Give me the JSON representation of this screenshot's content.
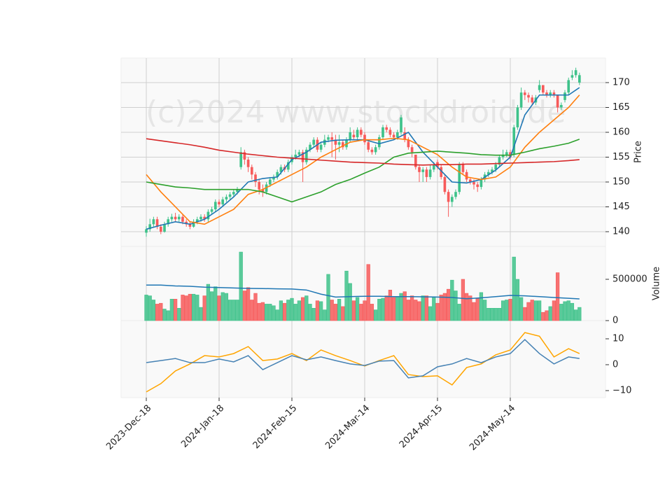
{
  "chart_data": {
    "type": "candlestick",
    "annotation": "(c)2024 www.stockdroid.de",
    "xlim": [
      -6.92,
      126.15
    ],
    "xticks": [
      {
        "value": 0,
        "label": "2023-Dec-18"
      },
      {
        "value": 20,
        "label": "2024-Jan-18"
      },
      {
        "value": 40,
        "label": "2024-Feb-15"
      },
      {
        "value": 60,
        "label": "2024-Mar-14"
      },
      {
        "value": 80,
        "label": "2024-Apr-15"
      },
      {
        "value": 100,
        "label": "2024-May-14"
      }
    ],
    "grid": true,
    "up_color": "#3ec28a",
    "down_color": "#f75a5a",
    "ylabel": "Price",
    "ylim": [
      137.04,
      174.93
    ],
    "yticks": [
      140,
      145,
      150,
      155,
      160,
      165,
      170
    ],
    "open": [
      139.8,
      140.5,
      141.5,
      142.5,
      141,
      140,
      141.5,
      142.5,
      143,
      142.5,
      143,
      142,
      141.5,
      141,
      142,
      142.5,
      143,
      142.5,
      144,
      144.5,
      146,
      145.5,
      146.5,
      147,
      147.5,
      148,
      153,
      156,
      154.5,
      153,
      151.5,
      150,
      148.5,
      148,
      149.5,
      150.5,
      151,
      152,
      153,
      152.5,
      154,
      155,
      155.5,
      156,
      154,
      156.5,
      157.5,
      158.5,
      156.5,
      157.5,
      158.5,
      159,
      158.5,
      157.5,
      158,
      157,
      158.5,
      159.5,
      159,
      160.5,
      159.5,
      158,
      156.5,
      156,
      157,
      159,
      161,
      160.5,
      159.5,
      159,
      160,
      160,
      158.5,
      157,
      155.5,
      153,
      152,
      152.5,
      151,
      152.5,
      154,
      153,
      151,
      148,
      146,
      147,
      148,
      153.5,
      152,
      150.5,
      150,
      149.5,
      149,
      150.5,
      151.5,
      152,
      152.5,
      153.5,
      155,
      155.5,
      156,
      155.5,
      161,
      165,
      168,
      167.5,
      167,
      166,
      168.5,
      169.5,
      168,
      167.5,
      168,
      167.5,
      165,
      166.5,
      168,
      171,
      171.5,
      170
    ],
    "high": [
      141.1,
      142.6,
      143,
      143,
      141.5,
      142,
      143,
      143.6,
      143.8,
      143.5,
      143.5,
      142.5,
      142,
      142.5,
      143,
      143.5,
      143.5,
      144.5,
      145,
      146.5,
      146.5,
      147,
      147.5,
      148,
      148.5,
      149,
      157,
      156.5,
      155,
      153.5,
      152,
      150.5,
      149.5,
      150,
      151,
      151.5,
      152.5,
      153.5,
      153.5,
      154.5,
      155.5,
      156.5,
      156.5,
      156.5,
      157,
      158,
      159,
      159,
      158,
      159.5,
      159.5,
      160,
      159.5,
      159.5,
      158.5,
      159,
      161,
      160.5,
      161,
      161,
      160,
      158.5,
      157,
      157.5,
      159.5,
      161.5,
      161.5,
      161,
      160,
      160.5,
      163.5,
      161,
      159,
      157.5,
      155.5,
      153.5,
      153,
      153,
      153.5,
      154,
      154.5,
      153.5,
      151.5,
      148.5,
      147.5,
      148.5,
      154,
      154,
      152.5,
      151,
      150.5,
      150,
      151,
      152,
      152.5,
      153,
      154,
      155.5,
      156.5,
      156.5,
      156.5,
      161.5,
      165.5,
      169,
      168.5,
      168,
      167.5,
      167.5,
      170.5,
      169.5,
      168.5,
      168.5,
      168.5,
      167.5,
      166,
      168.5,
      171,
      172.5,
      173,
      172
    ],
    "low": [
      139,
      140,
      141,
      140.5,
      139.5,
      139.8,
      141,
      142,
      142,
      142,
      141.5,
      141,
      140.5,
      140.8,
      141.5,
      142,
      142,
      142,
      143.5,
      144,
      145,
      145,
      146,
      146.5,
      147,
      147.5,
      152.5,
      153.5,
      152,
      150.5,
      149,
      147.5,
      147,
      147.5,
      149,
      150,
      150.5,
      151.5,
      152,
      152,
      153.5,
      154.5,
      155,
      150,
      153.5,
      156,
      157,
      156,
      156,
      157,
      158,
      155,
      154.5,
      156,
      156.5,
      156.5,
      158,
      158.5,
      158.5,
      159,
      157.5,
      156,
      155.5,
      155.5,
      156.5,
      158.5,
      160,
      159,
      158.5,
      158.5,
      159.5,
      158,
      156.5,
      155,
      152.5,
      150,
      150,
      150,
      150.5,
      152,
      152.5,
      150.5,
      147.5,
      143,
      145,
      146.5,
      147.5,
      151.5,
      150,
      149.5,
      148.5,
      148,
      148.5,
      150,
      151,
      151.5,
      152,
      153,
      154.5,
      155,
      154.5,
      155,
      160.5,
      164.5,
      166.5,
      166,
      165.5,
      165.5,
      168,
      167.5,
      167,
      167,
      167,
      164,
      164.5,
      166,
      167.5,
      170.5,
      171,
      169.5
    ],
    "close": [
      140.5,
      141.5,
      142.5,
      141,
      140,
      141.5,
      142.5,
      143,
      142.5,
      143,
      142,
      141.5,
      141,
      142,
      142.5,
      143,
      142.5,
      144,
      144.5,
      146,
      145.5,
      146.5,
      147,
      147.5,
      148,
      148.5,
      156,
      154.5,
      153,
      151.5,
      150,
      148.5,
      148,
      149.5,
      150.5,
      151,
      152,
      153,
      152.5,
      154,
      155,
      155.5,
      156,
      154,
      156.5,
      157.5,
      158.5,
      156.5,
      157.5,
      158.5,
      159,
      158.5,
      157.5,
      158,
      157,
      158.5,
      160,
      159,
      160.5,
      159.5,
      158,
      156.5,
      156,
      157,
      159,
      161,
      160.5,
      159.5,
      159,
      160,
      163,
      158.5,
      157,
      156,
      153,
      152,
      152.5,
      151,
      152.5,
      153.5,
      153,
      151,
      148,
      146,
      147,
      148,
      153.5,
      152,
      150.5,
      150,
      149.5,
      149,
      150.5,
      151.5,
      152,
      152.5,
      153.5,
      155,
      155.5,
      156,
      155,
      161,
      165,
      168,
      167.5,
      167,
      166,
      167,
      169.5,
      168,
      167.5,
      168,
      167.5,
      165,
      165.5,
      168,
      170.5,
      171.5,
      172.5,
      171.5
    ],
    "series": [
      {
        "color": "#1f77b4",
        "x": [
          0,
          4,
          8,
          12,
          16,
          20,
          24,
          28,
          32,
          36,
          40,
          44,
          48,
          52,
          56,
          60,
          64,
          68,
          72,
          76,
          80,
          84,
          88,
          92,
          96,
          100,
          104,
          108,
          112,
          116,
          119
        ],
        "values": [
          140.5,
          141.3,
          142,
          141.5,
          142.5,
          144.5,
          147,
          150,
          150.7,
          151,
          154.5,
          156,
          158,
          158.4,
          158.5,
          158.5,
          157.7,
          158.5,
          160,
          156,
          153,
          150,
          149.8,
          150.5,
          152.4,
          155,
          163.5,
          167.5,
          167.5,
          167.5,
          169
        ]
      },
      {
        "color": "#ff7f0e",
        "x": [
          0,
          4,
          8,
          12,
          16,
          20,
          24,
          28,
          32,
          36,
          40,
          44,
          48,
          52,
          56,
          60,
          64,
          68,
          72,
          76,
          80,
          84,
          88,
          92,
          96,
          100,
          104,
          108,
          112,
          116,
          119
        ],
        "values": [
          151.5,
          148,
          145,
          142,
          141.5,
          143,
          144.5,
          147.5,
          148.5,
          150,
          151.5,
          153,
          155,
          156.5,
          158,
          158.5,
          158.5,
          158.8,
          158.5,
          157,
          155.5,
          153,
          151,
          150.5,
          151,
          153,
          157,
          160,
          162.5,
          165,
          167.5
        ]
      },
      {
        "color": "#2ca02c",
        "x": [
          0,
          4,
          8,
          12,
          16,
          20,
          24,
          28,
          32,
          36,
          40,
          44,
          48,
          52,
          56,
          60,
          64,
          68,
          72,
          76,
          80,
          84,
          88,
          92,
          96,
          100,
          104,
          108,
          112,
          116,
          119
        ],
        "values": [
          150,
          149.5,
          149,
          148.8,
          148.5,
          148.5,
          148.5,
          148.5,
          148,
          147,
          146,
          147,
          148,
          149.5,
          150.5,
          151.8,
          153,
          155,
          155.8,
          156,
          156.2,
          156,
          155.8,
          155.5,
          155.4,
          155.4,
          156,
          156.7,
          157.2,
          157.8,
          158.6
        ]
      },
      {
        "color": "#d62728",
        "x": [
          0,
          4,
          8,
          12,
          16,
          20,
          24,
          28,
          32,
          36,
          40,
          44,
          48,
          52,
          56,
          60,
          64,
          68,
          72,
          76,
          80,
          84,
          88,
          92,
          96,
          100,
          104,
          108,
          112,
          116,
          119
        ],
        "values": [
          158.7,
          158.3,
          157.9,
          157.5,
          157,
          156.4,
          156,
          155.6,
          155.3,
          155,
          154.8,
          154.6,
          154.4,
          154.2,
          154,
          153.9,
          153.8,
          153.6,
          153.5,
          153.4,
          153.5,
          153.5,
          153.6,
          153.6,
          153.7,
          153.8,
          153.9,
          154,
          154.1,
          154.3,
          154.5
        ]
      }
    ],
    "volume": {
      "ylabel": "Volume",
      "ylim": [
        0,
        898300
      ],
      "yticks": [
        0,
        500000
      ],
      "values": [
        310000,
        300000,
        250000,
        200000,
        210000,
        140000,
        120000,
        260000,
        260000,
        150000,
        310000,
        300000,
        320000,
        320000,
        310000,
        160000,
        300000,
        440000,
        350000,
        410000,
        300000,
        340000,
        330000,
        250000,
        250000,
        250000,
        830000,
        360000,
        400000,
        250000,
        330000,
        210000,
        220000,
        200000,
        200000,
        180000,
        130000,
        240000,
        210000,
        250000,
        270000,
        200000,
        240000,
        280000,
        300000,
        200000,
        150000,
        240000,
        230000,
        130000,
        560000,
        250000,
        200000,
        260000,
        170000,
        600000,
        450000,
        240000,
        280000,
        200000,
        240000,
        680000,
        200000,
        130000,
        260000,
        270000,
        300000,
        370000,
        280000,
        290000,
        330000,
        350000,
        250000,
        300000,
        250000,
        230000,
        300000,
        300000,
        170000,
        290000,
        210000,
        310000,
        330000,
        380000,
        490000,
        360000,
        200000,
        500000,
        330000,
        300000,
        220000,
        270000,
        340000,
        250000,
        150000,
        150000,
        150000,
        150000,
        240000,
        250000,
        260000,
        770000,
        500000,
        280000,
        160000,
        220000,
        250000,
        240000,
        240000,
        100000,
        120000,
        170000,
        240000,
        580000,
        200000,
        230000,
        240000,
        210000,
        130000,
        160000
      ],
      "series": [
        {
          "color": "#1f77b4",
          "x": [
            0,
            4,
            8,
            12,
            16,
            20,
            24,
            28,
            32,
            36,
            40,
            44,
            48,
            52,
            56,
            60,
            64,
            68,
            72,
            76,
            80,
            84,
            88,
            92,
            96,
            100,
            104,
            108,
            112,
            116,
            119
          ],
          "values": [
            430000,
            430000,
            420000,
            415000,
            405000,
            400000,
            395000,
            390000,
            388000,
            385000,
            382000,
            370000,
            320000,
            285000,
            290000,
            295000,
            295000,
            290000,
            290000,
            288000,
            285000,
            280000,
            265000,
            275000,
            290000,
            305000,
            300000,
            290000,
            280000,
            270000,
            263000
          ]
        }
      ]
    },
    "oscillator": {
      "ylim": [
        -12.7,
        17.03
      ],
      "yticks": [
        {
          "value": -10,
          "label": "−10"
        },
        0,
        10
      ],
      "series": [
        {
          "color": "#ffa500",
          "x": [
            0,
            4,
            8,
            12,
            16,
            20,
            24,
            28,
            32,
            36,
            40,
            44,
            48,
            52,
            56,
            60,
            64,
            68,
            72,
            76,
            80,
            84,
            88,
            92,
            96,
            100,
            104,
            108,
            112,
            116,
            119
          ],
          "values": [
            -10.5,
            -7.3,
            -2.4,
            0.3,
            3.5,
            3,
            4.3,
            7,
            1.6,
            2.2,
            4.3,
            1.6,
            5.7,
            3.5,
            1.6,
            -0.5,
            1.6,
            3.5,
            -3.8,
            -4.6,
            -4.3,
            -7.8,
            -1.1,
            0.3,
            3.8,
            5.7,
            12.4,
            11,
            3,
            6.2,
            4.3
          ]
        },
        {
          "color": "#4682b4",
          "x": [
            0,
            4,
            8,
            12,
            16,
            20,
            24,
            28,
            32,
            36,
            40,
            44,
            48,
            52,
            56,
            60,
            64,
            68,
            72,
            76,
            80,
            84,
            88,
            92,
            96,
            100,
            104,
            108,
            112,
            116,
            119
          ],
          "values": [
            0.8,
            1.6,
            2.4,
            0.8,
            0.8,
            2.2,
            1.1,
            3.5,
            -1.9,
            0.8,
            3.5,
            1.9,
            3,
            1.6,
            0.3,
            -0.3,
            1.4,
            1.6,
            -5.1,
            -4.3,
            -0.8,
            0.3,
            2.4,
            0.8,
            3,
            4.3,
            9.7,
            4.3,
            0.3,
            3,
            2.4
          ]
        }
      ]
    }
  }
}
